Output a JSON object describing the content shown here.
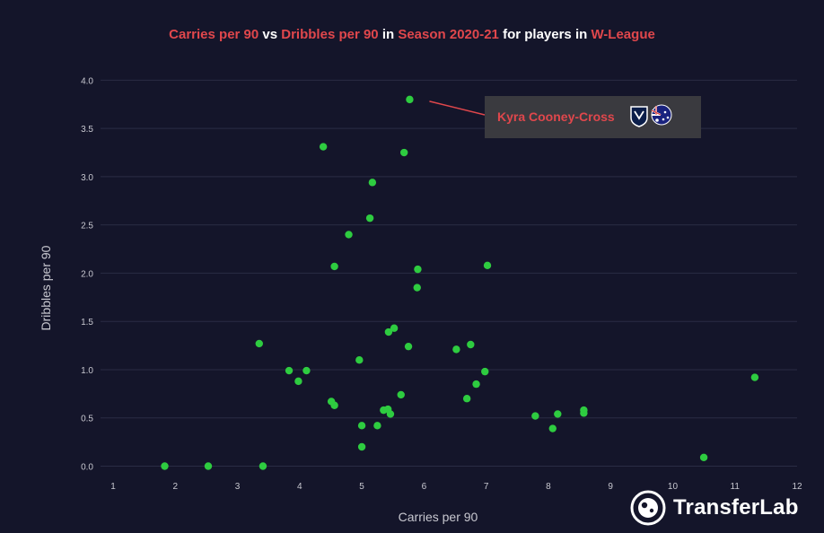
{
  "title": {
    "parts": [
      {
        "text": "Carries per 90",
        "highlight": true
      },
      {
        "text": " vs ",
        "highlight": false
      },
      {
        "text": "Dribbles per 90",
        "highlight": true
      },
      {
        "text": " in ",
        "highlight": false
      },
      {
        "text": "Season 2020-21",
        "highlight": true
      },
      {
        "text": " for players in ",
        "highlight": false
      },
      {
        "text": "W-League",
        "highlight": true
      }
    ]
  },
  "colors": {
    "background": "#14152a",
    "highlight": "#e0474c",
    "point": "#2ecc40",
    "grid": "#2a2c44",
    "annotation_box": "#3a3a3f",
    "tick": "#c8c8d0"
  },
  "chart_data": {
    "type": "scatter",
    "title": "Carries per 90 vs Dribbles per 90 in Season 2020-21 for players in W-League",
    "xlabel": "Carries per 90",
    "ylabel": "Dribbles per 90",
    "xlim": [
      1,
      12
    ],
    "ylim": [
      -0.2,
      4.05
    ],
    "x_ticks": [
      1,
      2,
      3,
      4,
      5,
      6,
      7,
      8,
      9,
      10,
      11,
      12
    ],
    "y_ticks": [
      0.0,
      0.5,
      1.0,
      1.5,
      2.0,
      2.5,
      3.0,
      3.5,
      4.0
    ],
    "grid": true,
    "points": [
      {
        "x": 1.83,
        "y": 0.0
      },
      {
        "x": 2.53,
        "y": 0.0
      },
      {
        "x": 3.41,
        "y": 0.0
      },
      {
        "x": 3.35,
        "y": 1.27
      },
      {
        "x": 3.83,
        "y": 0.99
      },
      {
        "x": 3.98,
        "y": 0.88
      },
      {
        "x": 4.11,
        "y": 0.99
      },
      {
        "x": 4.38,
        "y": 3.31
      },
      {
        "x": 4.51,
        "y": 0.67
      },
      {
        "x": 4.56,
        "y": 0.63
      },
      {
        "x": 4.56,
        "y": 2.07
      },
      {
        "x": 4.79,
        "y": 2.4
      },
      {
        "x": 4.96,
        "y": 1.1
      },
      {
        "x": 5.0,
        "y": 0.42
      },
      {
        "x": 5.0,
        "y": 0.2
      },
      {
        "x": 5.13,
        "y": 2.57
      },
      {
        "x": 5.17,
        "y": 2.94
      },
      {
        "x": 5.25,
        "y": 0.42
      },
      {
        "x": 5.35,
        "y": 0.58
      },
      {
        "x": 5.42,
        "y": 0.59
      },
      {
        "x": 5.43,
        "y": 1.39
      },
      {
        "x": 5.46,
        "y": 0.54
      },
      {
        "x": 5.52,
        "y": 1.43
      },
      {
        "x": 5.63,
        "y": 0.74
      },
      {
        "x": 5.68,
        "y": 3.25
      },
      {
        "x": 5.75,
        "y": 1.24
      },
      {
        "x": 5.77,
        "y": 3.8,
        "label": "Kyra Cooney-Cross"
      },
      {
        "x": 5.89,
        "y": 1.85
      },
      {
        "x": 5.9,
        "y": 2.04
      },
      {
        "x": 6.52,
        "y": 1.21
      },
      {
        "x": 6.69,
        "y": 0.7
      },
      {
        "x": 6.75,
        "y": 1.26
      },
      {
        "x": 6.84,
        "y": 0.85
      },
      {
        "x": 6.98,
        "y": 0.98
      },
      {
        "x": 7.02,
        "y": 2.08
      },
      {
        "x": 7.79,
        "y": 0.52
      },
      {
        "x": 8.07,
        "y": 0.39
      },
      {
        "x": 8.15,
        "y": 0.54
      },
      {
        "x": 8.57,
        "y": 0.58
      },
      {
        "x": 8.57,
        "y": 0.55
      },
      {
        "x": 10.5,
        "y": 0.09
      },
      {
        "x": 11.32,
        "y": 0.92
      }
    ],
    "annotation": {
      "label": "Kyra Cooney-Cross",
      "target_x": 5.77,
      "target_y": 3.8,
      "icons": [
        "club-crest-icon",
        "australia-flag-icon"
      ]
    }
  },
  "branding": {
    "logo_text": "TransferLab",
    "icon": "football-logo-icon"
  }
}
